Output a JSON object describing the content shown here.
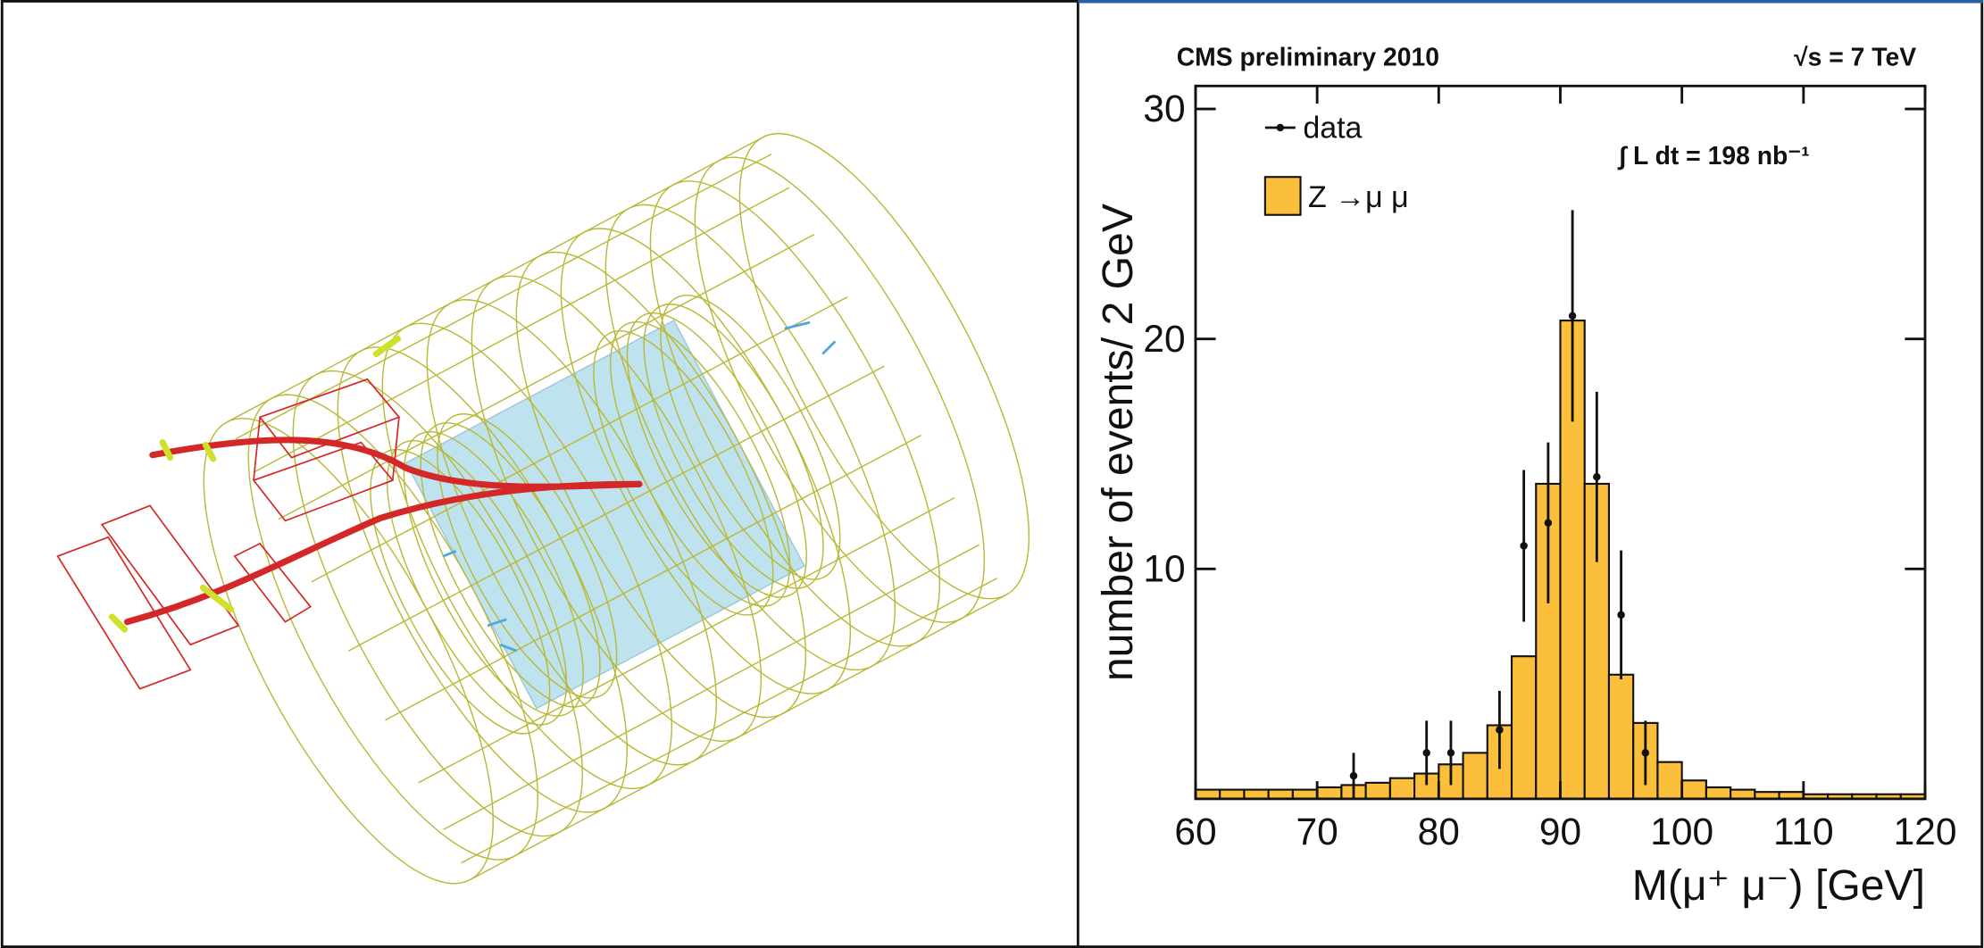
{
  "chart_data": {
    "type": "histogram",
    "title": "CMS preliminary 2010",
    "energy_label": "√s = 7 TeV",
    "lumi_label": "∫ L dt = 198 nb⁻¹",
    "xlabel": "M(μ⁺ μ⁻) [GeV]",
    "ylabel": "number of events/ 2 GeV",
    "bins": [
      60,
      62,
      64,
      66,
      68,
      70,
      72,
      74,
      76,
      78,
      80,
      82,
      84,
      86,
      88,
      90,
      92,
      94,
      96,
      98,
      100,
      102,
      104,
      106,
      108,
      110,
      112,
      114,
      116,
      118,
      120
    ],
    "series": [
      {
        "name": "Z →μ μ",
        "color": "#fbbf3b",
        "values": [
          0.4,
          0.4,
          0.4,
          0.4,
          0.4,
          0.5,
          0.6,
          0.7,
          0.9,
          1.1,
          1.5,
          2.0,
          3.2,
          6.2,
          13.7,
          20.8,
          13.7,
          5.4,
          3.3,
          1.6,
          0.8,
          0.5,
          0.4,
          0.3,
          0.3,
          0.2,
          0.2,
          0.2,
          0.2,
          0.2
        ]
      }
    ],
    "data_points": {
      "name": "data",
      "color": "#111111",
      "x": [
        73,
        79,
        81,
        85,
        87,
        89,
        91,
        93,
        95,
        97
      ],
      "values": [
        1,
        2,
        2,
        3,
        11,
        12,
        21,
        14,
        8,
        2
      ],
      "errors": [
        1,
        1.4,
        1.4,
        1.7,
        3.3,
        3.5,
        4.6,
        3.7,
        2.8,
        1.4
      ]
    },
    "xlim": [
      60,
      120
    ],
    "ylim": [
      0,
      31
    ],
    "xticks": [
      60,
      70,
      80,
      90,
      100,
      110,
      120
    ],
    "yticks": [
      10,
      20,
      30
    ]
  }
}
